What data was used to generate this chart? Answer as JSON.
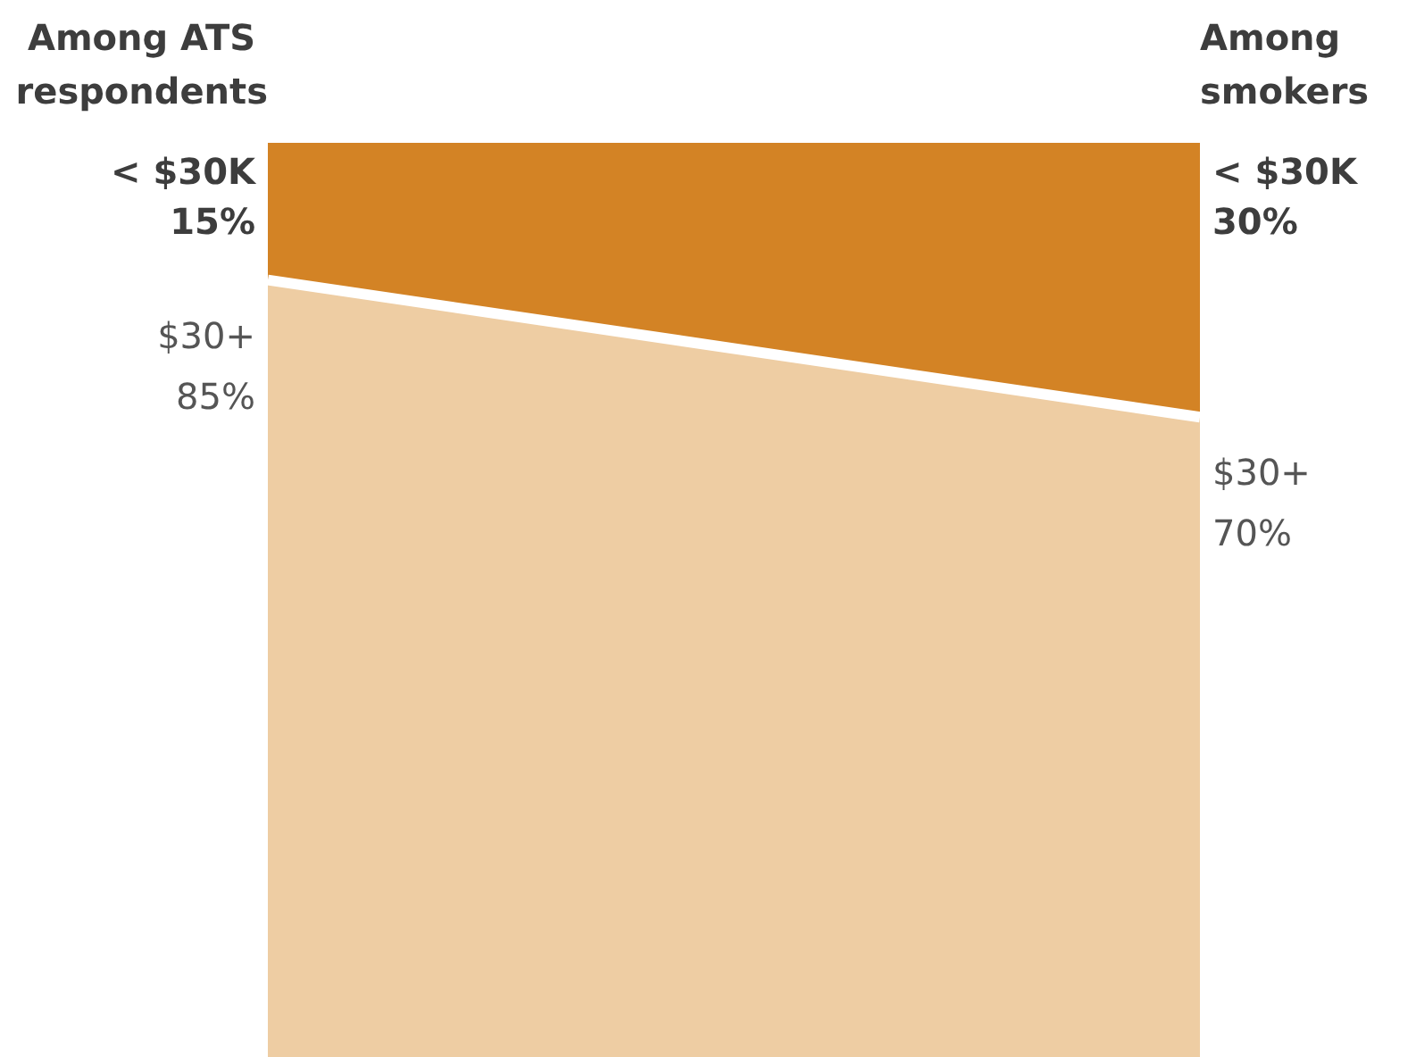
{
  "chart_data": {
    "type": "area",
    "categories": [
      "Among ATS respondents",
      "Among smokers"
    ],
    "stacked": true,
    "tick_labels": "x",
    "grid": false,
    "legend": false,
    "marker": "none",
    "series": [
      {
        "name": "$30+",
        "color": "#eecda3",
        "values": [
          85,
          70
        ],
        "value_labels": [
          "85%",
          "70%"
        ]
      },
      {
        "name": "< $30K",
        "color": "#d38325",
        "values": [
          15,
          30
        ],
        "value_labels": [
          "15%",
          "30%"
        ]
      }
    ]
  }
}
